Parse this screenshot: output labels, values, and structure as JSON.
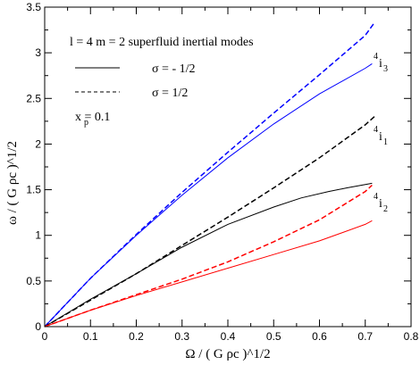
{
  "chart_data": {
    "type": "line",
    "xlabel": "Ω / ( G ρc )^1/2",
    "ylabel": "ω / ( G ρc )^1/2",
    "xlim": [
      0,
      0.8
    ],
    "ylim": [
      0,
      3.5
    ],
    "xticks": [
      "0",
      "0.1",
      "0.2",
      "0.3",
      "0.4",
      "0.5",
      "0.6",
      "0.7",
      "0.8"
    ],
    "yticks": [
      "0",
      "0.5",
      "1",
      "1.5",
      "2",
      "2.5",
      "3",
      "3.5"
    ],
    "grid": false,
    "annotations": {
      "header": "l = 4   m = 2   superfluid inertial modes",
      "legend_solid": "σ = - 1/2",
      "legend_dashed": "σ =   1/2",
      "xp": "x  = 0.1",
      "mode_i3": "4 i 3",
      "mode_i1": "4 i 1",
      "mode_i2": "4 i 2"
    },
    "series": [
      {
        "mode": "i3",
        "sigma": "-1/2",
        "color": "#0000ff",
        "dash": false,
        "x": [
          0,
          0.1,
          0.2,
          0.3,
          0.4,
          0.5,
          0.6,
          0.7,
          0.715
        ],
        "y": [
          0,
          0.53,
          1.0,
          1.44,
          1.85,
          2.22,
          2.55,
          2.83,
          2.88
        ]
      },
      {
        "mode": "i3",
        "sigma": "1/2",
        "color": "#0000ff",
        "dash": true,
        "x": [
          0,
          0.1,
          0.2,
          0.3,
          0.4,
          0.5,
          0.6,
          0.7,
          0.72
        ],
        "y": [
          0,
          0.53,
          1.01,
          1.47,
          1.91,
          2.34,
          2.76,
          3.19,
          3.33
        ]
      },
      {
        "mode": "i1",
        "sigma": "-1/2",
        "color": "#000000",
        "dash": false,
        "x": [
          0,
          0.1,
          0.2,
          0.3,
          0.4,
          0.5,
          0.56,
          0.62,
          0.66,
          0.715
        ],
        "y": [
          0,
          0.3,
          0.58,
          0.87,
          1.12,
          1.31,
          1.41,
          1.48,
          1.52,
          1.57
        ]
      },
      {
        "mode": "i1",
        "sigma": "1/2",
        "color": "#000000",
        "dash": true,
        "x": [
          0,
          0.1,
          0.2,
          0.3,
          0.4,
          0.5,
          0.6,
          0.7,
          0.72
        ],
        "y": [
          0,
          0.29,
          0.58,
          0.89,
          1.2,
          1.52,
          1.85,
          2.21,
          2.3
        ]
      },
      {
        "mode": "i2",
        "sigma": "-1/2",
        "color": "#ff0000",
        "dash": false,
        "x": [
          0,
          0.1,
          0.2,
          0.3,
          0.4,
          0.5,
          0.6,
          0.7,
          0.715
        ],
        "y": [
          0,
          0.18,
          0.34,
          0.49,
          0.64,
          0.79,
          0.94,
          1.12,
          1.16
        ]
      },
      {
        "mode": "i2",
        "sigma": "1/2",
        "color": "#ff0000",
        "dash": true,
        "x": [
          0,
          0.1,
          0.2,
          0.3,
          0.4,
          0.5,
          0.6,
          0.7,
          0.715
        ],
        "y": [
          0,
          0.18,
          0.35,
          0.52,
          0.71,
          0.93,
          1.17,
          1.48,
          1.55
        ]
      }
    ]
  }
}
